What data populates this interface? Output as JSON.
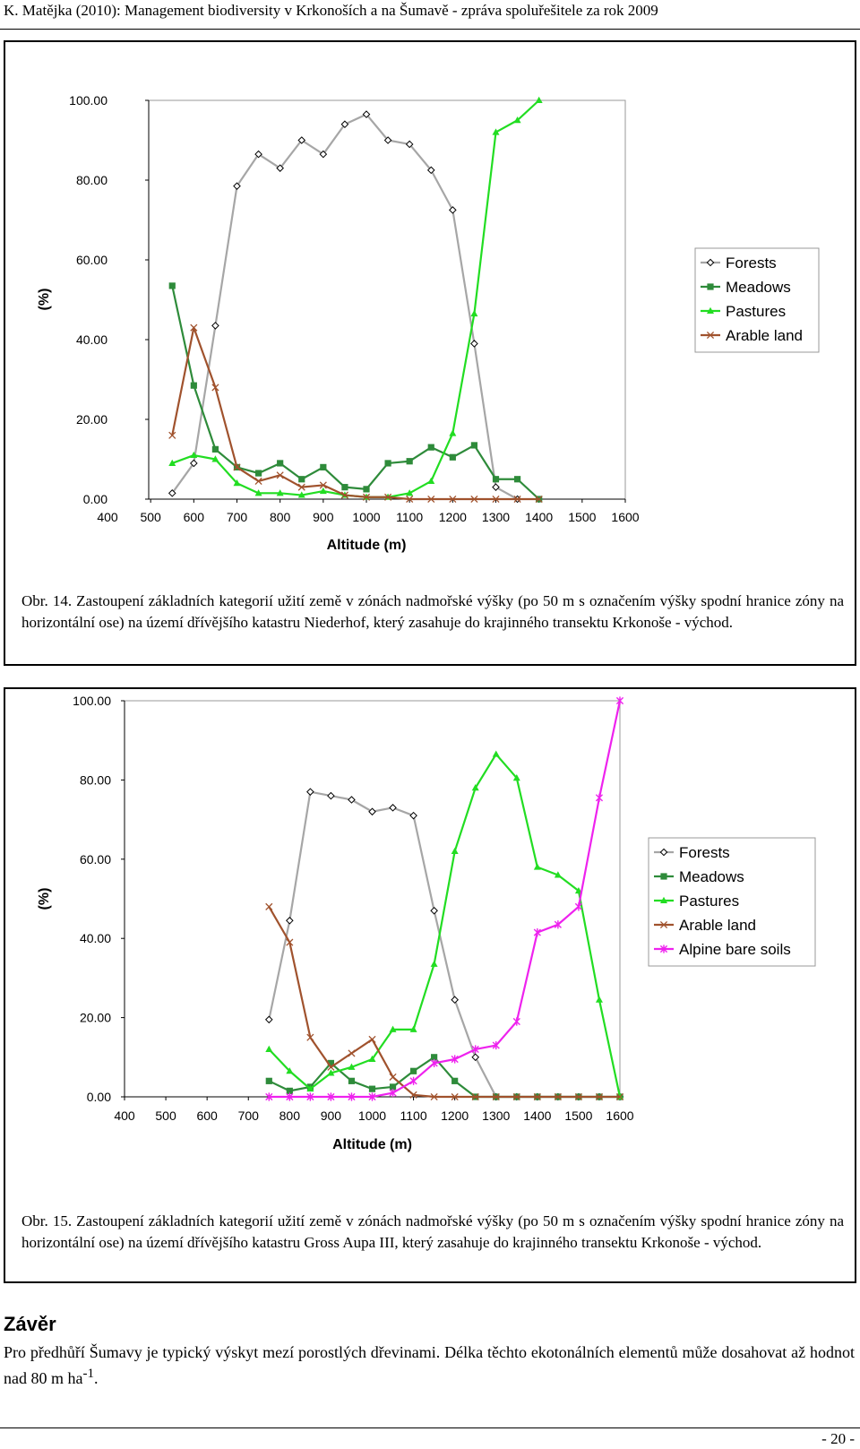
{
  "header": {
    "title": "K. Matějka (2010): Management biodiversity v Krkonoších a na Šumavě - zpráva spoluřešitele za rok 2009"
  },
  "colors": {
    "forests": "#a6a6a6",
    "meadows": "#2e8b3a",
    "pastures": "#22dd22",
    "arable": "#a0522d",
    "alpine": "#ee22ee"
  },
  "figures": [
    {
      "caption_label": "Obr. 14.",
      "caption_text": " Zastoupení základních kategorií užití země v zónách nadmořské výšky (po 50 m s označením výšky spodní hranice zóny na horizontální ose) na území dřívějšího katastru Niederhof, který zasahuje do krajinného transektu Krkonoše - východ."
    },
    {
      "caption_label": "Obr. 15.",
      "caption_text": " Zastoupení základních kategorií užití země v zónách nadmořské výšky (po 50 m s označením výšky spodní hranice zóny na horizontální ose) na území dřívějšího katastru Gross Aupa III, který zasahuje do krajinného transektu Krkonoše - východ."
    }
  ],
  "section": {
    "title": "Závěr",
    "text": "Pro předhůří Šumavy je typický výskyt mezí porostlých dřevinami. Délka těchto ekotonálních elementů může dosahovat až hodnot nad 80 m ha",
    "text_sup": "-1",
    "text_end": "."
  },
  "page_number": "- 20 -",
  "chart_data": [
    {
      "type": "line",
      "xlabel": "Altitude (m)",
      "ylabel": "(%)",
      "ylim": [
        0,
        100
      ],
      "xlim": [
        400,
        1600
      ],
      "xticks": [
        "400",
        "500",
        "600",
        "700",
        "800",
        "900",
        "1000",
        "1100",
        "1200",
        "1300",
        "1400",
        "1500",
        "1600"
      ],
      "yticks": [
        "0.00",
        "20.00",
        "40.00",
        "60.00",
        "80.00",
        "100.00"
      ],
      "legend_position": "right",
      "x": [
        500,
        550,
        600,
        650,
        700,
        750,
        800,
        850,
        900,
        950,
        1000,
        1050,
        1100,
        1150,
        1200,
        1250,
        1300,
        1350,
        1400,
        1450,
        1500
      ],
      "series": [
        {
          "name": "Forests",
          "key": "forests",
          "marker": "diamond",
          "values": [
            null,
            1.5,
            9,
            43.5,
            78.5,
            86.5,
            83,
            90,
            86.5,
            94,
            96.5,
            90,
            89,
            82.5,
            72.5,
            39,
            3,
            0,
            null,
            null,
            null
          ]
        },
        {
          "name": "Meadows",
          "key": "meadows",
          "marker": "square",
          "values": [
            null,
            53.5,
            28.5,
            12.5,
            8,
            6.5,
            9,
            5,
            8,
            3,
            2.5,
            9,
            9.5,
            13,
            10.5,
            13.5,
            5,
            5,
            0,
            null,
            null
          ]
        },
        {
          "name": "Pastures",
          "key": "pastures",
          "marker": "triangle",
          "values": [
            null,
            9,
            11,
            10,
            4,
            1.5,
            1.5,
            1,
            2,
            1,
            0.5,
            0.5,
            1.5,
            4.5,
            16.5,
            46.5,
            92,
            95,
            100,
            null,
            null
          ]
        },
        {
          "name": "Arable land",
          "key": "arable",
          "marker": "x",
          "values": [
            null,
            16,
            43,
            28,
            8,
            4.5,
            6,
            3,
            3.5,
            1,
            0.5,
            0.5,
            0,
            0,
            0,
            0,
            0,
            0,
            0,
            null,
            null
          ]
        }
      ]
    },
    {
      "type": "line",
      "xlabel": "Altitude (m)",
      "ylabel": "(%)",
      "ylim": [
        0,
        100
      ],
      "xlim": [
        400,
        1600
      ],
      "xticks": [
        "400",
        "500",
        "600",
        "700",
        "800",
        "900",
        "1000",
        "1100",
        "1200",
        "1300",
        "1400",
        "1500",
        "1600"
      ],
      "yticks": [
        "0.00",
        "20.00",
        "40.00",
        "60.00",
        "80.00",
        "100.00"
      ],
      "legend_position": "right",
      "x": [
        750,
        800,
        850,
        900,
        950,
        1000,
        1050,
        1100,
        1150,
        1200,
        1250,
        1300,
        1350,
        1400,
        1450,
        1500,
        1550,
        1600
      ],
      "series": [
        {
          "name": "Forests",
          "key": "forests",
          "marker": "diamond",
          "values": [
            19.5,
            44.5,
            77,
            76,
            75,
            72,
            73,
            71,
            47,
            24.5,
            10,
            0,
            0,
            0,
            0,
            0,
            0,
            0
          ]
        },
        {
          "name": "Meadows",
          "key": "meadows",
          "marker": "square",
          "values": [
            4,
            1.5,
            2.5,
            8.5,
            4,
            2,
            2.5,
            6.5,
            10,
            4,
            0,
            0,
            0,
            0,
            0,
            0,
            0,
            0
          ]
        },
        {
          "name": "Pastures",
          "key": "pastures",
          "marker": "triangle",
          "values": [
            12,
            6.5,
            2,
            6,
            7.5,
            9.5,
            17,
            17,
            33.5,
            62,
            78,
            86.5,
            80.5,
            58,
            56,
            52,
            24.5,
            0
          ]
        },
        {
          "name": "Arable land",
          "key": "arable",
          "marker": "x",
          "values": [
            48,
            39,
            15,
            7.5,
            11,
            14.5,
            5,
            0.5,
            0,
            0,
            0,
            0,
            0,
            0,
            0,
            0,
            0,
            0
          ]
        },
        {
          "name": "Alpine bare soils",
          "key": "alpine",
          "marker": "star",
          "values": [
            0,
            0,
            0,
            0,
            0,
            0,
            1,
            4,
            8.5,
            9.5,
            12,
            13,
            19,
            41.5,
            43.5,
            48,
            75.5,
            100
          ]
        }
      ]
    }
  ]
}
